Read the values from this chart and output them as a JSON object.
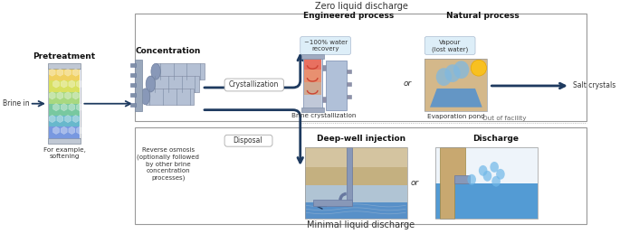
{
  "title_zld": "Zero liquid discharge",
  "title_mld": "Minimal liquid discharge",
  "label_pretreatment": "Pretreatment",
  "label_concentration": "Concentration",
  "label_engineered": "Engineered process",
  "label_natural": "Natural process",
  "label_brine_in": "Brine in",
  "label_for_example": "For example,\nsoftening",
  "label_ro": "Reverse osmosis\n(optionally followed\nby other brine\nconcentration\nprocesses)",
  "label_crystallization": "Crystallization",
  "label_disposal": "Disposal",
  "label_water_recovery": "~100% water\nrecovery",
  "label_brine_cryst": "Brine crystallization",
  "label_vapour": "Vapour\n(lost water)",
  "label_evap_pond": "Evaporation pond",
  "label_salt_crystals": "Salt crystals",
  "label_deepwell": "Deep-well injection",
  "label_discharge": "Discharge",
  "label_out_of_facility": "Out of facility",
  "label_or1": "or",
  "label_or2": "or",
  "bg_color": "#ffffff",
  "arrow_color": "#1e3a5f",
  "text_color": "#333333",
  "bold_color": "#111111"
}
